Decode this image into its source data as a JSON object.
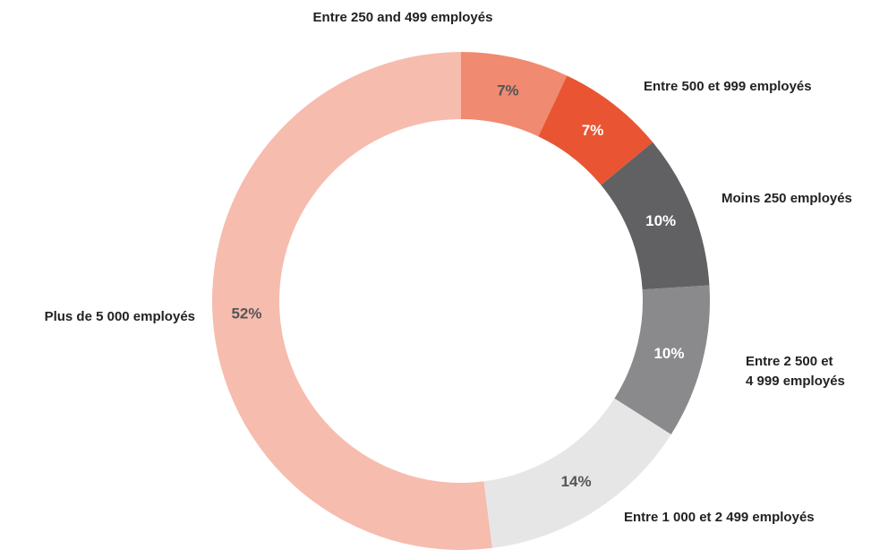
{
  "chart_data": {
    "type": "donut",
    "categories": [
      "Entre 250 and 499 employés",
      "Entre 500 et 999 employés",
      "Moins 250 employés",
      "Entre 2 500 et\n4 999 employés",
      "Entre 1 000 et 2 499 employés",
      "Plus de 5 000 employés"
    ],
    "values": [
      7,
      7,
      10,
      10,
      14,
      52
    ],
    "value_labels": [
      "7%",
      "7%",
      "10%",
      "10%",
      "14%",
      "52%"
    ],
    "colors": [
      "#f08a70",
      "#e95532",
      "#616163",
      "#8a8a8d",
      "#e6e6e7",
      "#f6bcae"
    ]
  }
}
